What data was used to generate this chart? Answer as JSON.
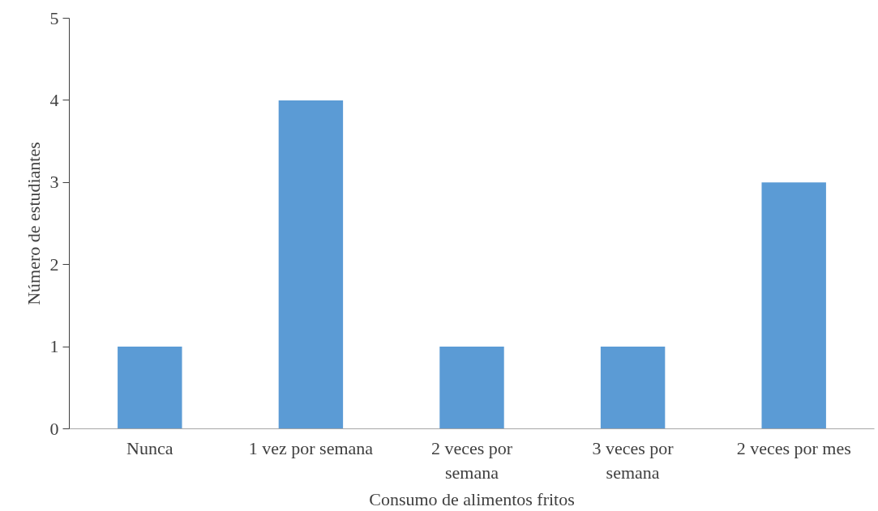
{
  "chart_data": {
    "type": "bar",
    "xlabel": "Consumo de alimentos fritos",
    "ylabel": "Número de estudiantes",
    "categories": [
      "Nunca",
      "1 vez por semana",
      "2 veces por semana",
      "3 veces por semana",
      "2 veces por mes"
    ],
    "values": [
      1,
      4,
      1,
      1,
      3
    ],
    "color": "#5b9bd5",
    "ylim": [
      0,
      5
    ],
    "yticks": [
      0,
      1,
      2,
      3,
      4,
      5
    ],
    "grid": false,
    "legend": false
  }
}
